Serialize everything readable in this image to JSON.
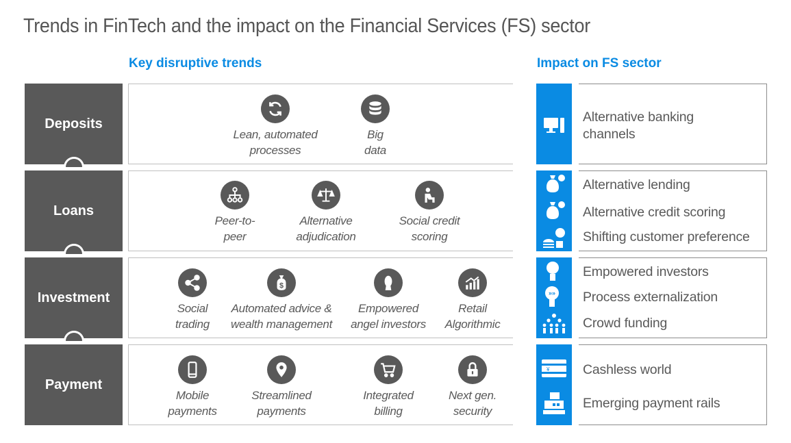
{
  "title": "Trends in FinTech and the impact on the Financial Services (FS) sector",
  "headers": {
    "trends": "Key disruptive trends",
    "impact": "Impact on FS sector"
  },
  "rows": [
    {
      "label": "Deposits",
      "trends": [
        {
          "label": "Lean, automated\nprocesses",
          "icon": "refresh-icon"
        },
        {
          "label": "Big\ndata",
          "icon": "database-icon"
        }
      ],
      "impacts": [
        {
          "label": "Alternative banking\nchannels",
          "icon": "computer-icon"
        }
      ]
    },
    {
      "label": "Loans",
      "trends": [
        {
          "label": "Peer-to-\npeer",
          "icon": "network-icon"
        },
        {
          "label": "Alternative\nadjudication",
          "icon": "scales-icon"
        },
        {
          "label": "Social credit\nscoring",
          "icon": "person-desk-icon"
        }
      ],
      "impacts": [
        {
          "label": "Alternative lending",
          "icon": "money-bag-icon"
        },
        {
          "label": "Alternative credit scoring",
          "icon": "money-bag-euro-icon"
        },
        {
          "label": "Shifting customer preference",
          "icon": "burger-icon"
        }
      ]
    },
    {
      "label": "Investment",
      "trends": [
        {
          "label": "Social\ntrading",
          "icon": "share-icon"
        },
        {
          "label": "Automated advice &\nwealth management",
          "icon": "dollar-bag-icon"
        },
        {
          "label": "Empowered\nangel investors",
          "icon": "person-icon"
        },
        {
          "label": "Retail\nAlgorithmic",
          "icon": "growth-chart-icon"
        }
      ],
      "impacts": [
        {
          "label": "Empowered investors",
          "icon": "lightbulb-head-icon"
        },
        {
          "label": "Process externalization",
          "icon": "speech-head-icon"
        },
        {
          "label": "Crowd funding",
          "icon": "crowd-icon"
        }
      ]
    },
    {
      "label": "Payment",
      "trends": [
        {
          "label": "Mobile\npayments",
          "icon": "mobile-icon"
        },
        {
          "label": "Streamlined\npayments",
          "icon": "location-pin-icon"
        },
        {
          "label": "Integrated\nbilling",
          "icon": "shopping-cart-icon"
        },
        {
          "label": "Next gen.\nsecurity",
          "icon": "padlock-icon"
        }
      ],
      "impacts": [
        {
          "label": "Cashless world",
          "icon": "banknote-icon"
        },
        {
          "label": "Emerging payment rails",
          "icon": "cash-register-icon"
        }
      ]
    }
  ],
  "colors": {
    "accent": "#0a8be3",
    "dark": "#595959",
    "text": "#555555"
  }
}
